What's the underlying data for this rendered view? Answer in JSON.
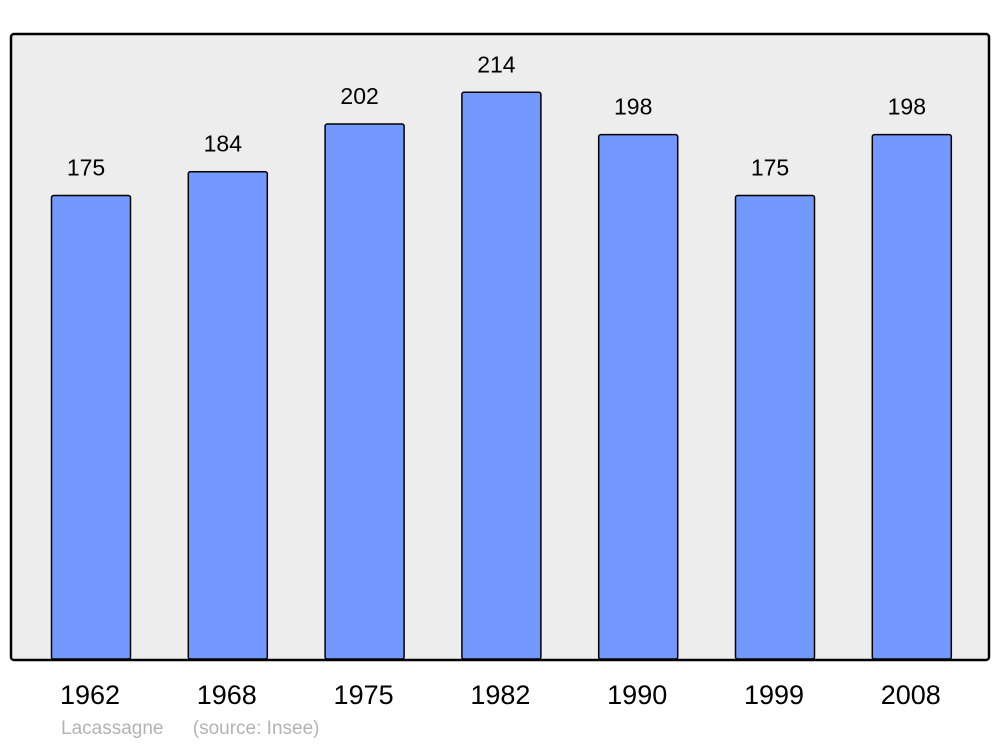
{
  "chart_data": {
    "type": "bar",
    "categories": [
      "1962",
      "1968",
      "1975",
      "1982",
      "1990",
      "1999",
      "2008"
    ],
    "values": [
      175,
      184,
      202,
      214,
      198,
      175,
      198
    ],
    "data_labels": [
      "175",
      "184",
      "202",
      "214",
      "198",
      "175",
      "198"
    ],
    "title": "",
    "xlabel": "",
    "ylabel": "",
    "ylim": [
      0,
      236
    ],
    "grid": false,
    "colors": {
      "bar": "#7399ff",
      "plot_background": "#ededed",
      "stroke": "#000000"
    }
  },
  "footer": {
    "place": "Lacassagne",
    "source": "(source: Insee)"
  }
}
